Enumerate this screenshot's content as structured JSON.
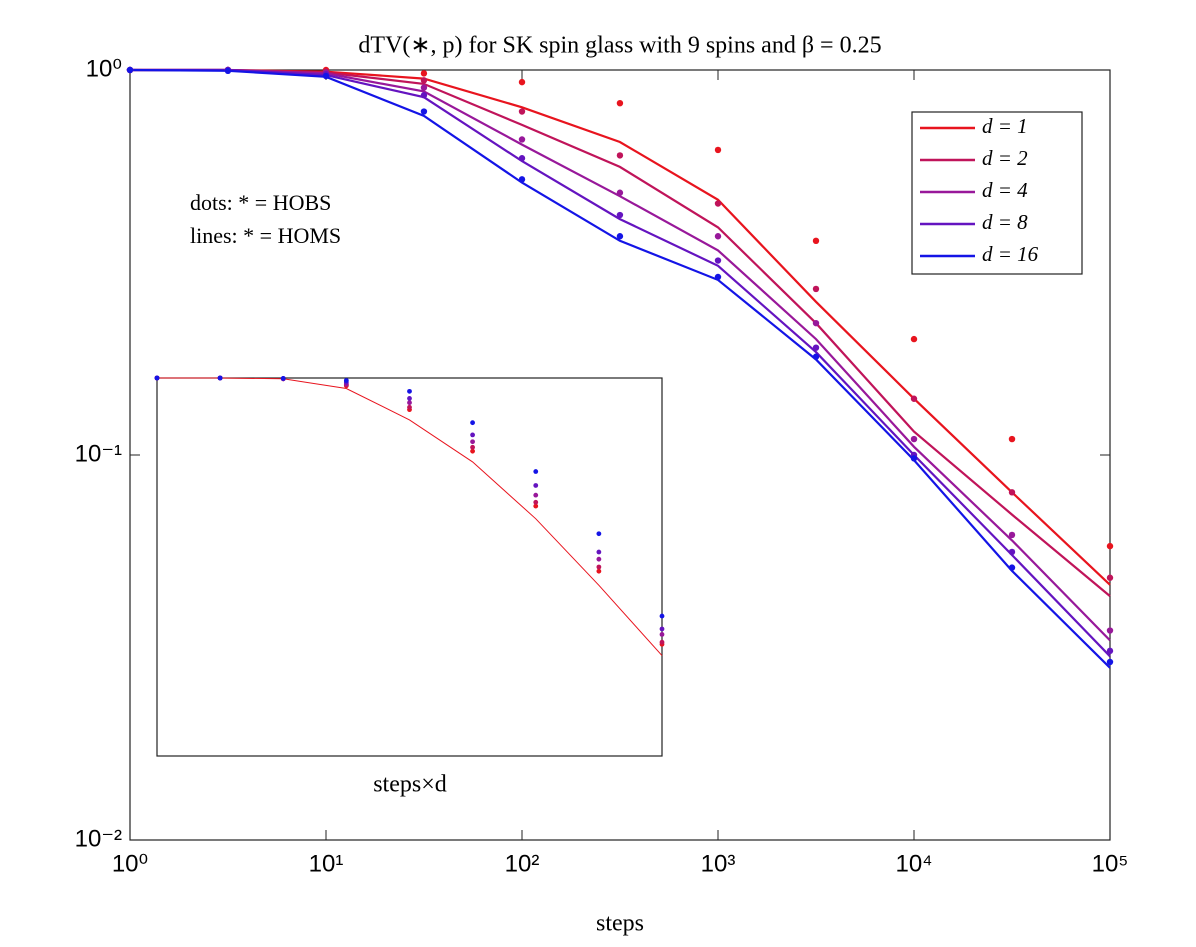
{
  "chart_data": [
    {
      "type": "line",
      "title": "dTV(∗, p) for SK spin glass with 9 spins and β = 0.25",
      "xlabel": "steps",
      "annotations": [
        "dots: * = HOBS",
        "lines: * = HOMS"
      ],
      "xscale": "log",
      "yscale": "log",
      "legend": "upper right",
      "x": [
        1,
        3.16,
        10,
        31.6,
        100,
        316,
        1000,
        3162,
        10000,
        31623,
        100000
      ],
      "xlim": [
        1,
        100000
      ],
      "xticks": [
        {
          "value": 1,
          "label": "10⁰"
        },
        {
          "value": 10,
          "label": "10¹"
        },
        {
          "value": 100,
          "label": "10²"
        },
        {
          "value": 1000,
          "label": "10³"
        },
        {
          "value": 10000,
          "label": "10⁴"
        },
        {
          "value": 100000,
          "label": "10⁵"
        }
      ],
      "ylim": [
        0.01,
        1
      ],
      "yticks": [
        {
          "value": 0.01,
          "label": "10⁻²"
        },
        {
          "value": 0.1,
          "label": "10⁻¹"
        },
        {
          "value": 1,
          "label": "10⁰"
        }
      ],
      "series": [
        {
          "name": "d = 1",
          "style": "line",
          "color": "#e8141e",
          "values": [
            1,
            1,
            0.99,
            0.95,
            0.8,
            0.65,
            0.46,
            0.25,
            0.14,
            0.08,
            0.046
          ]
        },
        {
          "name": "d = 2",
          "style": "line",
          "color": "#c0145a",
          "values": [
            1,
            1,
            0.985,
            0.92,
            0.72,
            0.56,
            0.39,
            0.22,
            0.115,
            0.07,
            0.043
          ]
        },
        {
          "name": "d = 4",
          "style": "line",
          "color": "#98189a",
          "values": [
            1,
            1,
            0.98,
            0.88,
            0.64,
            0.47,
            0.34,
            0.2,
            0.105,
            0.06,
            0.033
          ]
        },
        {
          "name": "d = 8",
          "style": "line",
          "color": "#6414c0",
          "values": [
            1,
            1,
            0.97,
            0.85,
            0.58,
            0.41,
            0.31,
            0.185,
            0.1,
            0.055,
            0.03
          ]
        },
        {
          "name": "d = 16",
          "style": "line",
          "color": "#1414e6",
          "values": [
            1,
            0.995,
            0.96,
            0.76,
            0.51,
            0.36,
            0.285,
            0.177,
            0.097,
            0.05,
            0.028
          ]
        },
        {
          "style": "dots",
          "color": "#e8141e",
          "values": [
            1,
            1,
            1,
            0.98,
            0.93,
            0.82,
            0.62,
            0.36,
            0.2,
            0.11,
            0.058
          ]
        },
        {
          "style": "dots",
          "color": "#c0145a",
          "values": [
            1,
            1,
            0.99,
            0.94,
            0.78,
            0.6,
            0.45,
            0.27,
            0.14,
            0.08,
            0.048
          ]
        },
        {
          "style": "dots",
          "color": "#98189a",
          "values": [
            1,
            1,
            0.985,
            0.9,
            0.66,
            0.48,
            0.37,
            0.22,
            0.11,
            0.062,
            0.035
          ]
        },
        {
          "style": "dots",
          "color": "#6414c0",
          "values": [
            1,
            1,
            0.975,
            0.86,
            0.59,
            0.42,
            0.32,
            0.19,
            0.1,
            0.056,
            0.031
          ]
        },
        {
          "style": "dots",
          "color": "#1414e6",
          "values": [
            1,
            0.995,
            0.965,
            0.78,
            0.52,
            0.37,
            0.29,
            0.18,
            0.098,
            0.051,
            0.029
          ]
        }
      ]
    },
    {
      "type": "line",
      "xlabel": "steps×d",
      "xscale": "log",
      "yscale": "log",
      "x": [
        1,
        3.16,
        10,
        31.6,
        100,
        316,
        1000,
        3162,
        10000
      ],
      "xlim": [
        1,
        10000
      ],
      "ylim": [
        0.01,
        1
      ],
      "series": [
        {
          "style": "line",
          "color": "#e8141e",
          "values": [
            1,
            1,
            0.99,
            0.88,
            0.6,
            0.36,
            0.18,
            0.08,
            0.034
          ]
        },
        {
          "style": "dots",
          "color": "#e8141e",
          "values": [
            1,
            1,
            0.99,
            0.91,
            0.68,
            0.41,
            0.21,
            0.095,
            0.039
          ]
        },
        {
          "style": "dots",
          "color": "#c0145a",
          "values": [
            1,
            1,
            0.99,
            0.92,
            0.7,
            0.43,
            0.22,
            0.1,
            0.04
          ]
        },
        {
          "style": "dots",
          "color": "#98189a",
          "values": [
            1,
            1,
            0.99,
            0.93,
            0.74,
            0.46,
            0.24,
            0.11,
            0.044
          ]
        },
        {
          "style": "dots",
          "color": "#6414c0",
          "values": [
            1,
            1,
            0.995,
            0.95,
            0.78,
            0.5,
            0.27,
            0.12,
            0.047
          ]
        },
        {
          "style": "dots",
          "color": "#1414e6",
          "values": [
            1,
            1,
            0.995,
            0.97,
            0.85,
            0.58,
            0.32,
            0.15,
            0.055
          ]
        }
      ]
    }
  ]
}
